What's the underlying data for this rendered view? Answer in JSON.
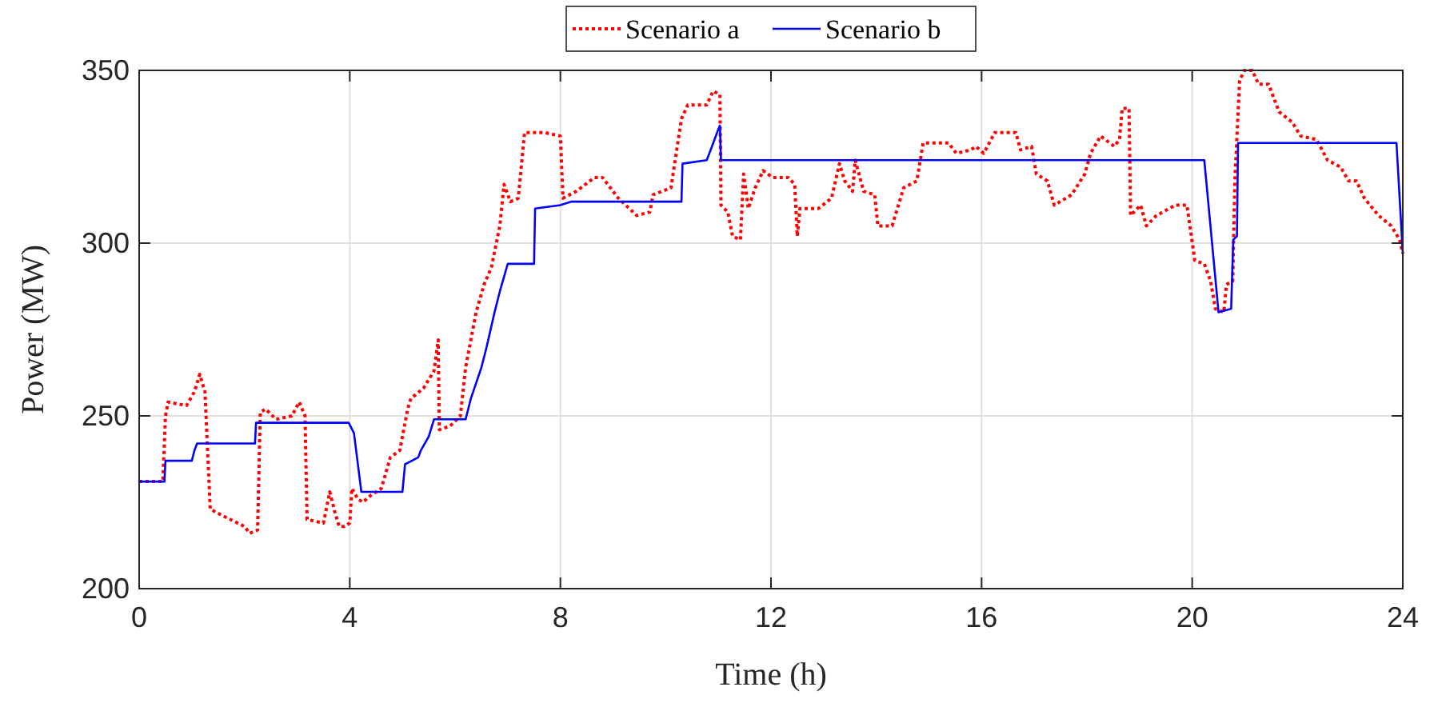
{
  "chart_data": {
    "type": "line",
    "xlabel": "Time (h)",
    "ylabel": "Power (MW)",
    "xlim": [
      0,
      24
    ],
    "ylim": [
      200,
      350
    ],
    "xticks": [
      0,
      4,
      8,
      12,
      16,
      20,
      24
    ],
    "yticks": [
      200,
      250,
      300,
      350
    ],
    "grid": true,
    "legend": "top",
    "series": [
      {
        "name": "Scenario a",
        "color": "#ff0000",
        "line_style": "dotted",
        "x": [
          0,
          0.45,
          0.5,
          0.55,
          0.9,
          1.05,
          1.15,
          1.25,
          1.35,
          1.6,
          2.0,
          2.1,
          2.25,
          2.3,
          2.4,
          2.6,
          2.9,
          3.04,
          3.15,
          3.19,
          3.5,
          3.62,
          3.72,
          3.8,
          3.9,
          4.0,
          4.04,
          4.15,
          4.25,
          4.4,
          4.6,
          4.77,
          4.95,
          5.1,
          5.16,
          5.4,
          5.6,
          5.68,
          5.7,
          5.9,
          6.1,
          6.2,
          6.4,
          6.55,
          6.69,
          6.85,
          6.93,
          7.05,
          7.2,
          7.32,
          7.7,
          8.0,
          8.05,
          8.3,
          8.65,
          8.8,
          9.1,
          9.45,
          9.7,
          9.76,
          10.1,
          10.3,
          10.42,
          10.78,
          10.9,
          11.03,
          11.05,
          11.18,
          11.27,
          11.42,
          11.48,
          11.57,
          11.7,
          11.85,
          12.03,
          12.33,
          12.45,
          12.5,
          12.55,
          12.9,
          13.15,
          13.3,
          13.4,
          13.55,
          13.6,
          13.76,
          13.97,
          14.03,
          14.3,
          14.52,
          14.77,
          14.89,
          15.37,
          15.52,
          15.8,
          15.89,
          16.04,
          16.25,
          16.65,
          16.74,
          16.95,
          17.04,
          17.25,
          17.38,
          17.71,
          17.96,
          18.07,
          18.26,
          18.52,
          18.62,
          18.67,
          18.8,
          18.83,
          19.02,
          19.13,
          19.32,
          19.68,
          19.9,
          20.05,
          20.23,
          20.35,
          20.44,
          20.6,
          20.65,
          20.77,
          20.81,
          20.9,
          20.99,
          21.14,
          21.26,
          21.45,
          21.65,
          21.9,
          22.06,
          22.36,
          22.57,
          22.82,
          22.97,
          23.12,
          23.27,
          23.54,
          23.78,
          23.94,
          24
        ],
        "values": [
          231,
          231,
          250,
          254,
          253,
          257,
          262,
          257,
          223,
          221,
          218,
          216,
          217,
          251,
          252,
          249,
          250,
          254,
          250,
          220,
          219,
          228,
          222,
          218,
          218,
          219,
          229,
          226,
          225,
          227,
          229,
          238,
          240,
          252,
          255,
          258,
          263,
          272,
          246,
          247,
          250,
          264,
          280,
          288,
          293,
          305,
          317,
          312,
          313,
          332,
          332,
          331,
          313,
          315,
          319,
          319,
          313,
          308,
          309,
          314,
          316,
          336,
          340,
          340,
          344,
          343,
          311,
          309,
          302,
          301,
          320,
          310,
          316,
          321,
          319,
          319,
          317,
          302,
          310,
          310,
          313,
          323,
          318,
          315,
          324,
          315,
          314,
          305,
          305,
          316,
          318,
          329,
          329,
          326,
          327,
          328,
          326,
          332,
          332,
          327,
          328,
          320,
          318,
          311,
          314,
          320,
          326,
          331,
          328,
          330,
          339,
          339,
          308,
          311,
          305,
          308,
          311,
          311,
          295,
          294,
          289,
          281,
          280,
          288,
          289,
          318,
          347,
          350,
          350,
          346,
          346,
          338,
          335,
          331,
          330,
          324,
          322,
          318,
          318,
          313,
          308,
          305,
          301,
          297
        ]
      },
      {
        "name": "Scenario b",
        "color": "#0000ff",
        "line_style": "solid",
        "x": [
          0,
          0.48,
          0.5,
          1.0,
          1.05,
          1.1,
          2.2,
          2.22,
          3.98,
          4.08,
          4.22,
          5.0,
          5.05,
          5.3,
          5.35,
          5.5,
          5.6,
          6.2,
          6.3,
          6.5,
          6.6,
          6.75,
          6.85,
          7.0,
          7.5,
          7.52,
          8.0,
          8.2,
          10.3,
          10.32,
          10.78,
          10.88,
          11.0,
          11.03,
          11.05,
          20.23,
          20.5,
          20.74,
          20.78,
          20.85,
          20.87,
          23.88,
          24
        ],
        "values": [
          231,
          231,
          237,
          237,
          240,
          242,
          242,
          248,
          248,
          245,
          228,
          228,
          236,
          238,
          240,
          244,
          249,
          249,
          255,
          264,
          270,
          280,
          286,
          294,
          294,
          310,
          311,
          312,
          312,
          323,
          324,
          328,
          333,
          334,
          324,
          324,
          280,
          281,
          301,
          302,
          329,
          329,
          297
        ]
      }
    ]
  }
}
